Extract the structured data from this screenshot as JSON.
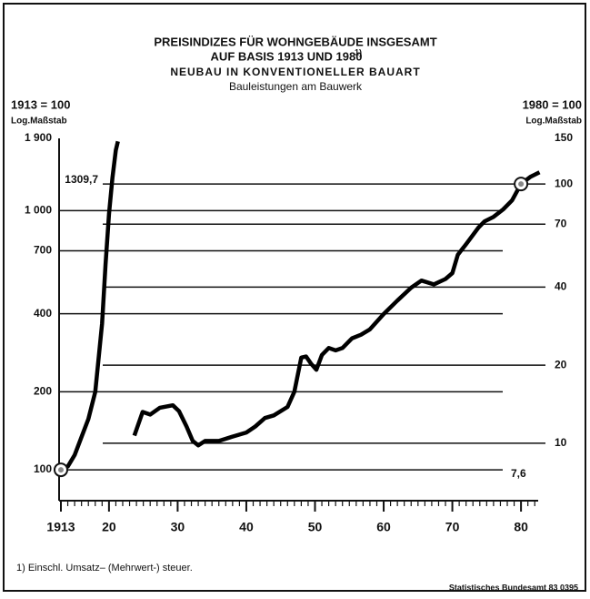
{
  "chart_data": {
    "type": "line",
    "title": "PREISINDIZES FÜR WOHNGEBÄUDE INSGESAMT",
    "title_line2": "AUF BASIS 1913 UND 1980",
    "title_note": "1)",
    "subtitle": "NEUBAU IN KONVENTIONELLER BAUART",
    "subtitle2": "Bauleistungen am Bauwerk",
    "ylabel": "1913 = 100",
    "ylabel_scale": "Log.Maßstab",
    "y2label": "1980 = 100",
    "y2label_scale": "Log.Maßstab",
    "footnote": "1) Einschl. Umsatz– (Mehrwert-) steuer.",
    "source": "Statistisches Bundesamt 83 0395",
    "log_scale": true,
    "grid": true,
    "color": "#000000",
    "base_years": [
      1913,
      1980
    ],
    "xlim": [
      1913,
      1982.5
    ],
    "xticks": [
      1913,
      {
        "value": 1920,
        "label": "20"
      },
      {
        "value": 1930,
        "label": "30"
      },
      {
        "value": 1940,
        "label": "40"
      },
      {
        "value": 1950,
        "label": "50"
      },
      {
        "value": 1960,
        "label": "60"
      },
      {
        "value": 1970,
        "label": "70"
      },
      {
        "value": 1980,
        "label": "80"
      }
    ],
    "ylim": [
      76,
      1900
    ],
    "yticks": [
      100,
      200,
      400,
      700,
      {
        "value": 1000,
        "label": "1 000"
      },
      {
        "value": 1900,
        "label": "1 900"
      }
    ],
    "y2lim": [
      6,
      150
    ],
    "y2ticks": [
      10,
      20,
      40,
      70,
      100,
      150
    ],
    "annotations": [
      {
        "value": 1309.7,
        "label": "1309,7",
        "axis": "y"
      },
      {
        "value": 7.6,
        "label": "7,6",
        "axis": "y2"
      }
    ],
    "series": [
      {
        "name": "1913 = 100",
        "axis": "y",
        "x": [
          1913,
          1914,
          1915,
          1916,
          1917,
          1918,
          1919,
          1919.5,
          1920,
          1920.5,
          1921,
          1921.3
        ],
        "values": [
          100,
          103,
          114,
          134,
          157,
          200,
          367,
          620,
          970,
          1340,
          1710,
          1850
        ]
      },
      {
        "name": "1980 = 100",
        "axis": "y2",
        "x": [
          1923.7,
          1924.9,
          1926,
          1927.4,
          1929.3,
          1930.2,
          1931.3,
          1932.2,
          1933,
          1934,
          1936,
          1938,
          1940,
          1941.3,
          1942.7,
          1944,
          1946,
          1947,
          1948,
          1948.7,
          1949.4,
          1950.2,
          1951,
          1952,
          1953,
          1954,
          1955.4,
          1956.7,
          1958,
          1960,
          1962,
          1964,
          1965.5,
          1967.3,
          1969,
          1970,
          1970.8,
          1972,
          1973.8,
          1974.7,
          1976,
          1977.4,
          1978.7,
          1980,
          1981.4,
          1982.7
        ],
        "values": [
          10.7,
          13.2,
          12.9,
          13.7,
          14.0,
          13.3,
          11.6,
          10.2,
          9.8,
          10.2,
          10.2,
          10.6,
          11.0,
          11.6,
          12.5,
          12.8,
          13.8,
          15.8,
          21.4,
          21.6,
          20.3,
          19.2,
          21.9,
          23.3,
          22.8,
          23.3,
          25.4,
          26.2,
          27.5,
          31.5,
          35.5,
          39.8,
          42.4,
          41.0,
          43.0,
          45.3,
          53.3,
          58.6,
          67.9,
          71.8,
          74.7,
          79.8,
          86.5,
          100,
          106.7,
          111
        ]
      }
    ]
  }
}
